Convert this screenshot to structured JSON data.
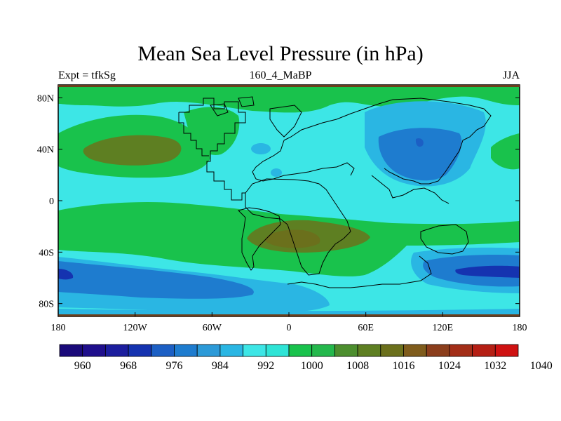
{
  "title": "Mean Sea Level Pressure (in hPa)",
  "subtitle_left": "Expt = tfkSg",
  "subtitle_center": "160_4_MaBP",
  "subtitle_right": "JJA",
  "y_axis": {
    "ticks": [
      {
        "label": "80N",
        "lat": 80
      },
      {
        "label": "40N",
        "lat": 40
      },
      {
        "label": "0",
        "lat": 0
      },
      {
        "label": "40S",
        "lat": -40
      },
      {
        "label": "80S",
        "lat": -80
      }
    ]
  },
  "x_axis": {
    "ticks": [
      {
        "label": "180",
        "lon": -180
      },
      {
        "label": "120W",
        "lon": -120
      },
      {
        "label": "60W",
        "lon": -60
      },
      {
        "label": "0",
        "lon": 0
      },
      {
        "label": "60E",
        "lon": 60
      },
      {
        "label": "120E",
        "lon": 120
      },
      {
        "label": "180",
        "lon": 180
      }
    ]
  },
  "colorbar": {
    "colors": [
      "#1a0a7a",
      "#1f0f8c",
      "#1c1e9e",
      "#1533b0",
      "#1c5fc4",
      "#1e7ccf",
      "#2c9ad8",
      "#2ab6e3",
      "#3de6e6",
      "#2ee4d6",
      "#19c24c",
      "#24b84c",
      "#4c8e2e",
      "#5e7f22",
      "#6b701c",
      "#7f5c1c",
      "#8b3e1c",
      "#a32e18",
      "#b51f14",
      "#cf1212"
    ],
    "labels": [
      {
        "text": "960",
        "index": 2
      },
      {
        "text": "968",
        "index": 4
      },
      {
        "text": "976",
        "index": 6
      },
      {
        "text": "984",
        "index": 8
      },
      {
        "text": "992",
        "index": 10
      },
      {
        "text": "1000",
        "index": 12
      },
      {
        "text": "1008",
        "index": 14
      },
      {
        "text": "1016",
        "index": 16
      },
      {
        "text": "1024",
        "index": 18
      },
      {
        "text": "1032",
        "index": 20
      },
      {
        "text": "1040",
        "index": 22
      }
    ]
  },
  "colors": {
    "background_field": "#3de6e6",
    "green": "#19c24c",
    "olive": "#4c8e2e",
    "brown": "#7f5c1c",
    "light_blue": "#2ab6e3",
    "mid_blue": "#1e7ccf",
    "dark_blue": "#1c1e9e",
    "polar_brown": "#6b3e1c"
  }
}
